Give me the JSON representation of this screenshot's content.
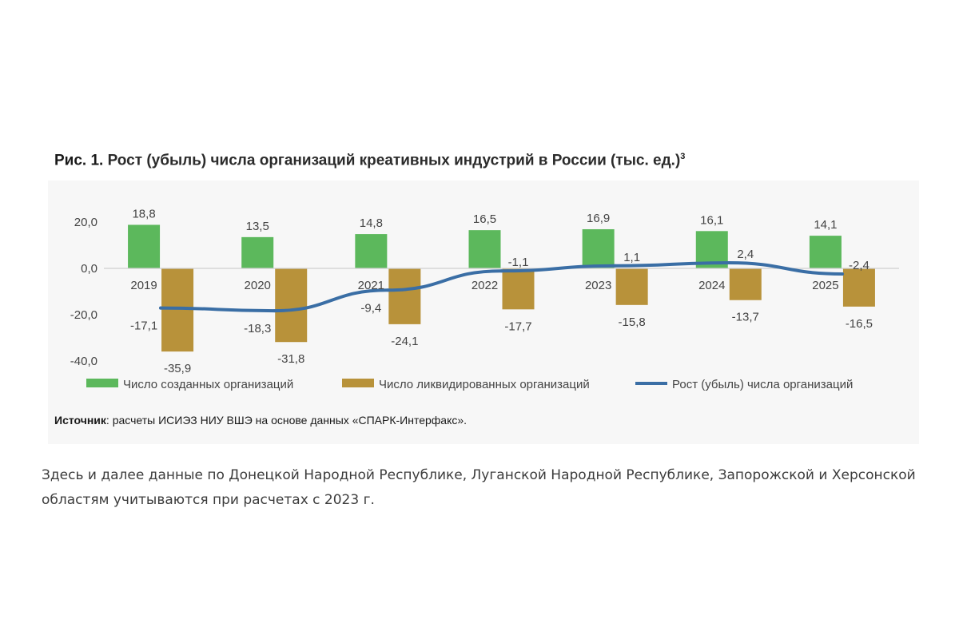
{
  "figure": {
    "label": "Рис. 1.",
    "title": "Рост (убыль) числа организаций креативных индустрий в России (тыс. ед.)",
    "footnote_mark": "3"
  },
  "source": {
    "label": "Источник",
    "text": ": расчеты ИСИЭЗ НИУ ВШЭ на основе данных «СПАРК-Интерфакс»."
  },
  "footnote_text": "Здесь и далее данные по Донецкой Народной Республике, Луганской Народной Республике, Запорожской и Херсонской областям учитываются при расчетах с 2023 г.",
  "chart_data": {
    "type": "bar",
    "categories": [
      "2019",
      "2020",
      "2021",
      "2022",
      "2023",
      "2024",
      "2025"
    ],
    "ylim": [
      -40,
      20
    ],
    "yticks": [
      20,
      0,
      -20,
      -40
    ],
    "ytick_labels": [
      "20,0",
      "0,0",
      "-20,0",
      "-40,0"
    ],
    "grid": false,
    "legend_position": "bottom",
    "series": [
      {
        "name": "Число созданных организаций",
        "type": "bar",
        "color": "#5cb85c",
        "values": [
          18.8,
          13.5,
          14.8,
          16.5,
          16.9,
          16.1,
          14.1
        ],
        "labels": [
          "18,8",
          "13,5",
          "14,8",
          "16,5",
          "16,9",
          "16,1",
          "14,1"
        ]
      },
      {
        "name": "Число ликвидированных организаций",
        "type": "bar",
        "color": "#b8923a",
        "values": [
          -35.9,
          -31.8,
          -24.1,
          -17.7,
          -15.8,
          -13.7,
          -16.5
        ],
        "labels": [
          "-35,9",
          "-31,8",
          "-24,1",
          "-17,7",
          "-15,8",
          "-13,7",
          "-16,5"
        ]
      },
      {
        "name": "Рост (убыль) числа организаций",
        "type": "line",
        "color": "#3a6ea5",
        "values": [
          -17.1,
          -18.3,
          -9.4,
          -1.1,
          1.1,
          2.4,
          -2.4
        ],
        "labels": [
          "-17,1",
          "-18,3",
          "-9,4",
          "-1,1",
          "1,1",
          "2,4",
          "-2,4"
        ]
      }
    ]
  }
}
